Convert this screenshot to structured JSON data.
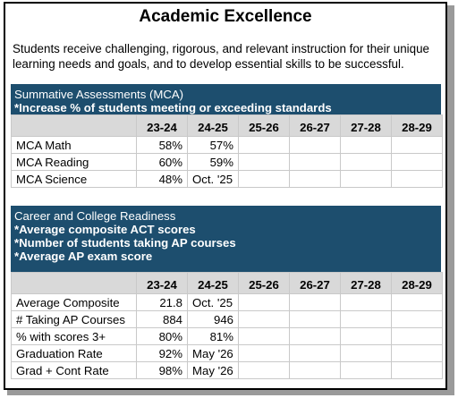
{
  "title": "Academic Excellence",
  "intro": "Students receive challenging, rigorous, and relevant instruction for their unique learning needs and goals, and to develop essential skills to be successful.",
  "years": [
    "23-24",
    "24-25",
    "25-26",
    "26-27",
    "27-28",
    "28-29"
  ],
  "section1": {
    "heading": "Summative Assessments (MCA)",
    "subheading": "*Increase % of students meeting or exceeding standards",
    "rows": [
      {
        "label": "MCA Math",
        "values": [
          "58%",
          "57%",
          "",
          "",
          "",
          ""
        ]
      },
      {
        "label": "MCA Reading",
        "values": [
          "60%",
          "59%",
          "",
          "",
          "",
          ""
        ]
      },
      {
        "label": "MCA Science",
        "values": [
          "48%",
          "Oct. '25",
          "",
          "",
          "",
          ""
        ]
      }
    ]
  },
  "section2": {
    "heading": "Career and College Readiness",
    "lines": [
      "*Average composite ACT scores",
      "*Number of students taking AP courses",
      "*Average AP exam score"
    ],
    "rows": [
      {
        "label": "Average Composite",
        "values": [
          "21.8",
          "Oct. '25",
          "",
          "",
          "",
          ""
        ]
      },
      {
        "label": "# Taking AP Courses",
        "values": [
          "884",
          "946",
          "",
          "",
          "",
          ""
        ]
      },
      {
        "label": "% with scores 3+",
        "values": [
          "80%",
          "81%",
          "",
          "",
          "",
          ""
        ]
      },
      {
        "label": "Graduation Rate",
        "values": [
          "92%",
          "May '26",
          "",
          "",
          "",
          ""
        ]
      },
      {
        "label": "Grad + Cont Rate",
        "values": [
          "98%",
          "May '26",
          "",
          "",
          "",
          ""
        ]
      }
    ]
  }
}
